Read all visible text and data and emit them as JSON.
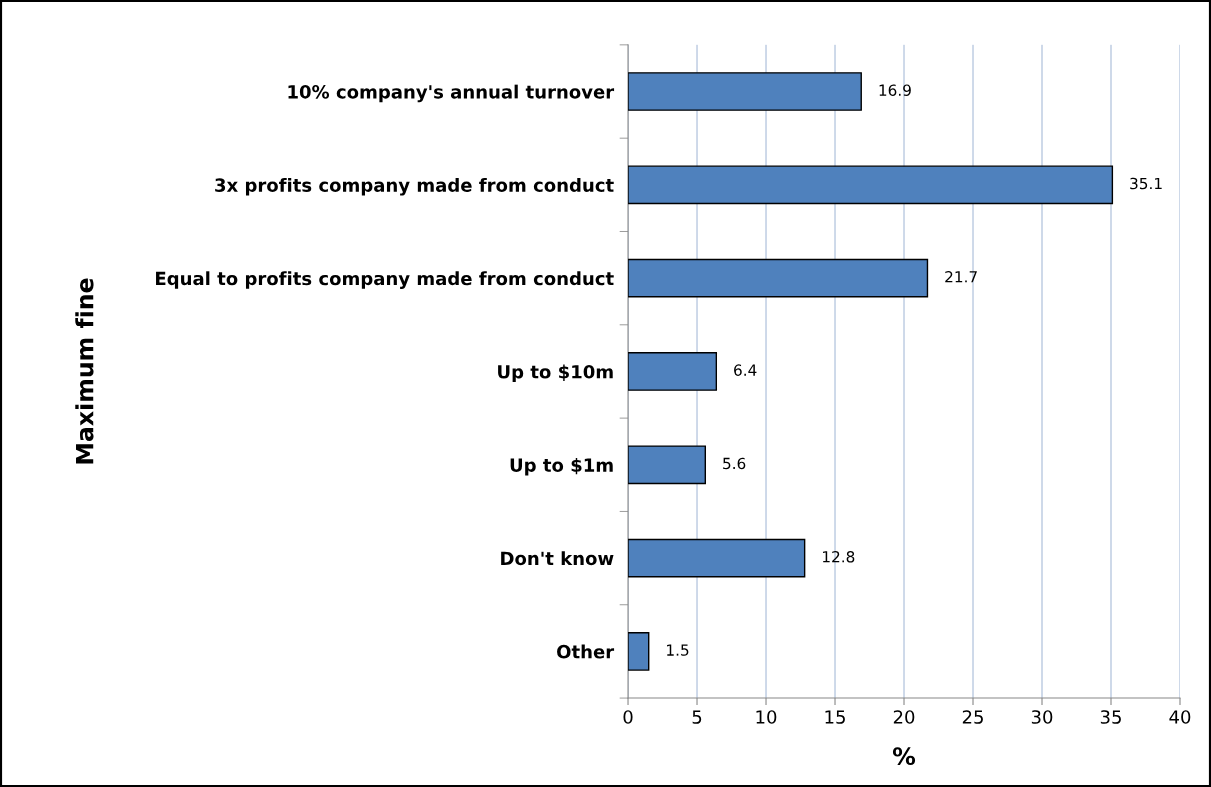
{
  "chart_data": {
    "type": "bar",
    "orientation": "horizontal",
    "xlabel": "%",
    "ylabel": "Maximum fine",
    "categories": [
      "10% company's annual turnover",
      "3x profits company made from conduct",
      "Equal to profits company made from conduct",
      "Up to $10m",
      "Up to $1m",
      "Don't know",
      "Other"
    ],
    "values": [
      16.9,
      35.1,
      21.7,
      6.4,
      5.6,
      12.8,
      1.5
    ],
    "color": "#4f81bd",
    "data_labels": true,
    "xlim": [
      0,
      40
    ],
    "xticks": [
      0,
      5,
      10,
      15,
      20,
      25,
      30,
      35,
      40
    ],
    "grid": "x"
  }
}
